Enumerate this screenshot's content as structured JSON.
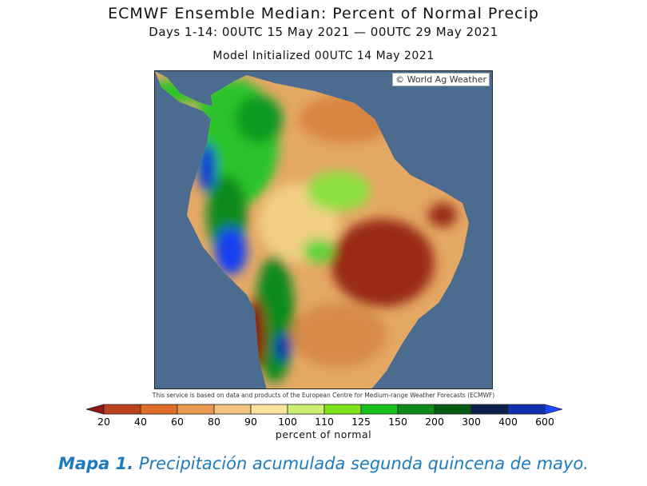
{
  "title": "ECMWF Ensemble Median: Percent of Normal Precip",
  "subtitle": "Days 1-14: 00UTC 15 May 2021 — 00UTC 29 May 2021",
  "init": "Model Initialized 00UTC 14 May 2021",
  "copyright": "© World Ag Weather",
  "service_note": "This service is based on data and products of the European Centre for Medium-range Weather Forecasts (ECMWF)",
  "legend": {
    "unit": "percent of normal",
    "ticks": [
      "20",
      "40",
      "60",
      "80",
      "90",
      "100",
      "110",
      "125",
      "150",
      "200",
      "300",
      "400",
      "600"
    ],
    "colors": [
      "#8b1a12",
      "#b9421c",
      "#dc6e28",
      "#e8994e",
      "#f2c27c",
      "#fbe29d",
      "#c9f070",
      "#7fe21a",
      "#19c01e",
      "#0a8a1a",
      "#035a12",
      "#0b1e4e",
      "#1030b0",
      "#1848ff"
    ]
  },
  "caption": {
    "label": "Mapa 1.",
    "text": " Precipitación acumulada segunda quincena de mayo."
  }
}
